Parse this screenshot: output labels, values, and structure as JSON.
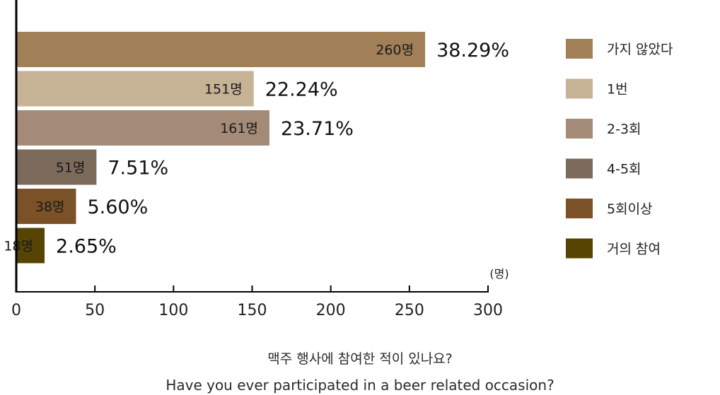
{
  "chart_data": {
    "type": "bar",
    "orientation": "horizontal",
    "categories": [
      "가지 않았다",
      "1번",
      "2-3회",
      "4-5회",
      "5회이상",
      "거의 참여"
    ],
    "values": [
      260,
      151,
      161,
      51,
      38,
      18
    ],
    "value_labels": [
      "260명",
      "151명",
      "161명",
      "51명",
      "38명",
      "18명"
    ],
    "percent_labels": [
      "38.29%",
      "22.24%",
      "23.71%",
      "7.51%",
      "5.60%",
      "2.65%"
    ],
    "colors": [
      "#a28057",
      "#c6b294",
      "#a48b78",
      "#7c6a5b",
      "#7b5227",
      "#574403"
    ],
    "xlim": [
      0,
      300
    ],
    "xticks": [
      "0",
      "50",
      "100",
      "150",
      "200",
      "250",
      "300"
    ],
    "xunit": "(명)",
    "legend_position": "right",
    "grid": false
  },
  "caption": {
    "korean": "맥주 행사에 참여한 적이 있나요?",
    "english": "Have you ever participated in a beer related occasion?"
  }
}
